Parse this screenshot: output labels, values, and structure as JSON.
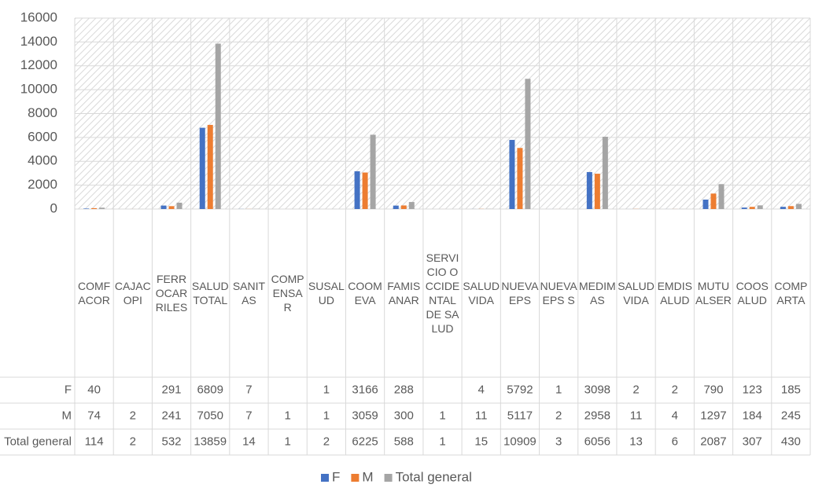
{
  "chart_data": {
    "type": "bar",
    "categories": [
      "COMFACOR",
      "CAJACOPI",
      "FERROCARRILES",
      "SALUD TOTAL",
      "SANITAS",
      "COMPENSAR",
      "SUSALUD",
      "COOMEVA",
      "FAMISANAR",
      "SERVICIO OCCIDENTAL DE SALUD",
      "SALUDVIDA",
      "NUEVA EPS",
      "NUEVA EPS S",
      "MEDIMAS",
      "SALUDVIDA",
      "EMDISALUD",
      "MUTUALSER",
      "COOSALUD",
      "COMPARTA"
    ],
    "series": [
      {
        "name": "F",
        "color": "#4472c4",
        "values": [
          40,
          null,
          291,
          6809,
          7,
          null,
          1,
          3166,
          288,
          null,
          4,
          5792,
          1,
          3098,
          2,
          2,
          790,
          123,
          185
        ]
      },
      {
        "name": "M",
        "color": "#ed7d31",
        "values": [
          74,
          2,
          241,
          7050,
          7,
          1,
          1,
          3059,
          300,
          1,
          11,
          5117,
          2,
          2958,
          11,
          4,
          1297,
          184,
          245
        ]
      },
      {
        "name": "Total general",
        "color": "#a5a5a5",
        "values": [
          114,
          2,
          532,
          13859,
          14,
          1,
          2,
          6225,
          588,
          1,
          15,
          10909,
          3,
          6056,
          13,
          6,
          2087,
          307,
          430
        ]
      }
    ],
    "ylim": [
      0,
      16000
    ],
    "yticks": [
      0,
      2000,
      4000,
      6000,
      8000,
      10000,
      12000,
      14000,
      16000
    ],
    "grid": true,
    "legend": "bottom",
    "data_table": true
  }
}
